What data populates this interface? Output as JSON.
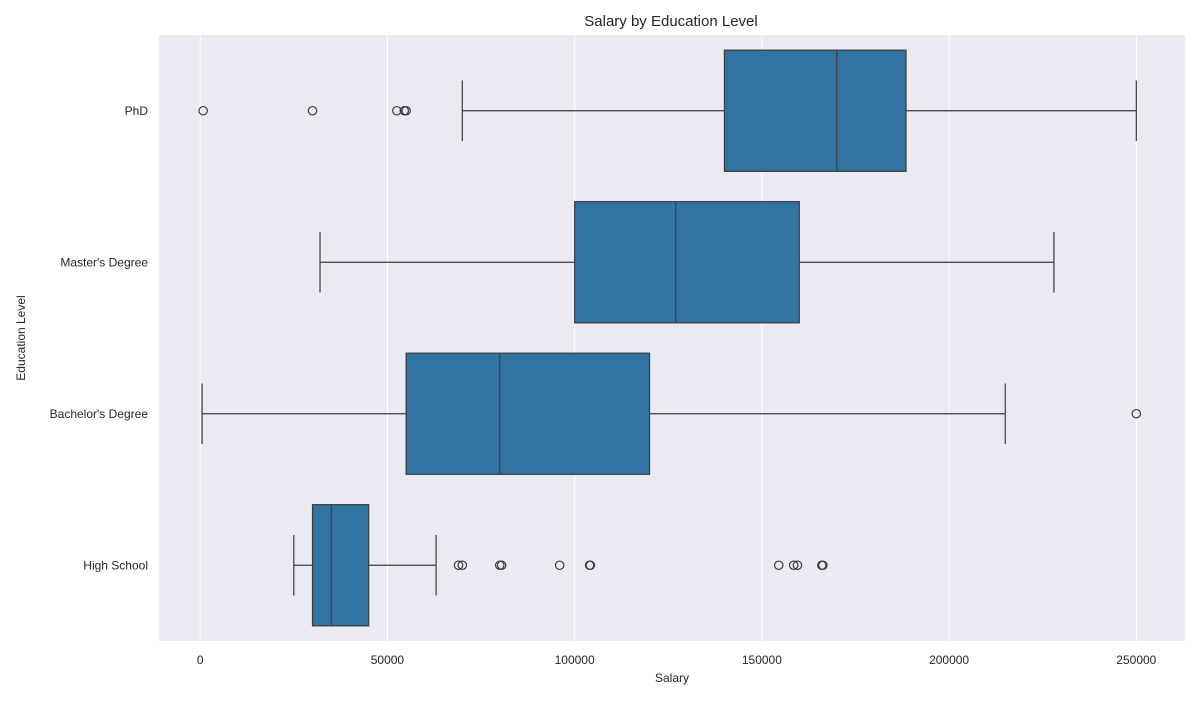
{
  "chart_data": {
    "type": "boxplot",
    "orientation": "horizontal",
    "title": "Salary by Education Level",
    "xlabel": "Salary",
    "ylabel": "Education Level",
    "xlim": [
      -11000,
      263000
    ],
    "xticks": [
      0,
      50000,
      100000,
      150000,
      200000,
      250000
    ],
    "grid": true,
    "colors": {
      "box": "#3274a1",
      "background": "#eaeaf2",
      "grid": "#ffffff",
      "line": "#3d3d3d"
    },
    "categories": [
      "PhD",
      "Master's Degree",
      "Bachelor's Degree",
      "High School"
    ],
    "boxes": [
      {
        "category": "PhD",
        "whislo": 70000,
        "q1": 140000,
        "med": 170000,
        "q3": 188500,
        "whishi": 250000,
        "fliers": [
          800,
          30000,
          52500,
          54500,
          55000
        ]
      },
      {
        "category": "Master's Degree",
        "whislo": 32000,
        "q1": 100000,
        "med": 127000,
        "q3": 160000,
        "whishi": 228000,
        "fliers": []
      },
      {
        "category": "Bachelor's Degree",
        "whislo": 500,
        "q1": 55000,
        "med": 80000,
        "q3": 120000,
        "whishi": 215000,
        "fliers": [
          250000
        ]
      },
      {
        "category": "High School",
        "whislo": 25000,
        "q1": 30000,
        "med": 35000,
        "q3": 45000,
        "whishi": 63000,
        "fliers": [
          69000,
          70000,
          80000,
          80500,
          96000,
          104000,
          104200,
          154500,
          158500,
          159500,
          166000,
          166300
        ]
      }
    ]
  }
}
